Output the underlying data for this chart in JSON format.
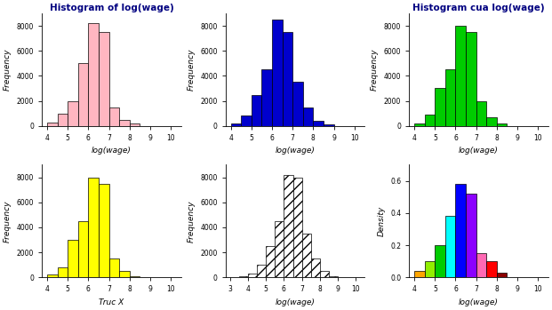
{
  "title1": "Histogram of log(wage)",
  "title3": "Histogram cua log(wage)",
  "xlabel_logwage": "log(wage)",
  "xlabel_truc": "Truc X",
  "ylabel_freq": "Frequency",
  "ylabel_density": "Density",
  "bins_main": [
    4.0,
    4.5,
    5.0,
    5.5,
    6.0,
    6.5,
    7.0,
    7.5,
    8.0,
    8.5,
    9.0,
    9.5,
    10.0
  ],
  "freqs1": [
    300,
    1000,
    2000,
    5000,
    8200,
    7500,
    1500,
    500,
    200,
    0,
    0,
    0
  ],
  "freqs2": [
    200,
    800,
    2500,
    4500,
    8500,
    7500,
    3500,
    1500,
    400,
    100,
    0,
    0
  ],
  "freqs3": [
    200,
    900,
    3000,
    4500,
    8000,
    7500,
    2000,
    700,
    200,
    0,
    0,
    0
  ],
  "freqs4": [
    200,
    800,
    3000,
    4500,
    8000,
    7500,
    1500,
    500,
    100,
    0,
    0,
    0
  ],
  "bins_hatch": [
    3.0,
    3.5,
    4.0,
    4.5,
    5.0,
    5.5,
    6.0,
    6.5,
    7.0,
    7.5,
    8.0,
    8.5,
    9.0,
    9.5,
    10.0
  ],
  "freqs5": [
    0,
    100,
    300,
    1000,
    2500,
    4500,
    8200,
    8000,
    3500,
    1500,
    500,
    100,
    50,
    0
  ],
  "density_bin_centers": [
    4.25,
    4.75,
    5.25,
    5.75,
    6.25,
    6.75,
    7.25,
    7.75,
    8.25
  ],
  "density_vals": [
    0.04,
    0.1,
    0.2,
    0.38,
    0.58,
    0.52,
    0.15,
    0.1,
    0.03
  ],
  "density_colors": [
    "#FFA500",
    "#90EE00",
    "#00CC00",
    "#00FFFF",
    "#0000FF",
    "#8B00FF",
    "#FF69B4",
    "#FF0000",
    "#8B0000"
  ],
  "color1": "#FFB6C1",
  "color2": "#0000CD",
  "color3": "#00CC00",
  "color4": "#FFFF00",
  "title_color": "#000080",
  "axis_color": "#444444",
  "ylim_freq": [
    0,
    9000
  ],
  "ylim_density": [
    0,
    0.7
  ],
  "yticks_freq": [
    0,
    2000,
    4000,
    6000,
    8000
  ],
  "yticks_density": [
    0.0,
    0.2,
    0.4,
    0.6
  ],
  "xticks_main": [
    4,
    5,
    6,
    7,
    8,
    9,
    10
  ],
  "xticks_hatch": [
    3,
    4,
    5,
    6,
    7,
    8,
    9,
    10
  ],
  "xlim_main": [
    3.75,
    10.5
  ],
  "xlim_hatch": [
    2.75,
    10.5
  ],
  "xlim_density": [
    3.75,
    10.5
  ],
  "font_size": 6.5,
  "title_font_size": 7.5,
  "tick_font_size": 5.5
}
